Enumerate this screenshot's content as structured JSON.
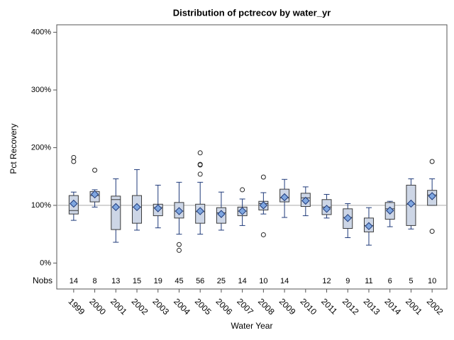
{
  "chart_data": {
    "type": "box",
    "title": "Distribution of pctrecov by water_yr",
    "x_label": "Water Year",
    "y_label": "Pct Recovery",
    "categories": [
      "1999",
      "2000",
      "2001",
      "2002",
      "2003",
      "2004",
      "2005",
      "2006",
      "2007",
      "2008",
      "2009",
      "2010",
      "2011",
      "2012",
      "2013",
      "2014",
      "2001",
      "2002"
    ],
    "boxes": [
      {
        "low": 74,
        "q1": 85,
        "median": 91,
        "q3": 117,
        "high": 123,
        "mean": 103,
        "outliers": [
          183,
          176
        ]
      },
      {
        "low": 97,
        "q1": 106,
        "median": 117,
        "q3": 124,
        "high": 127,
        "mean": 119,
        "outliers": [
          161
        ]
      },
      {
        "low": 36,
        "q1": 58,
        "median": 110,
        "q3": 116,
        "high": 146,
        "mean": 97,
        "outliers": []
      },
      {
        "low": 57,
        "q1": 69,
        "median": 97,
        "q3": 117,
        "high": 162,
        "mean": 97,
        "outliers": []
      },
      {
        "low": 61,
        "q1": 82,
        "median": 96,
        "q3": 102,
        "high": 135,
        "mean": 95,
        "outliers": []
      },
      {
        "low": 50,
        "q1": 78,
        "median": 90,
        "q3": 105,
        "high": 140,
        "mean": 90,
        "outliers": [
          32,
          22
        ]
      },
      {
        "low": 50,
        "q1": 69,
        "median": 89,
        "q3": 102,
        "high": 140,
        "mean": 90,
        "outliers": [
          191,
          171,
          170,
          154
        ]
      },
      {
        "low": 57,
        "q1": 69,
        "median": 87,
        "q3": 96,
        "high": 123,
        "mean": 85,
        "outliers": []
      },
      {
        "low": 65,
        "q1": 82,
        "median": 90,
        "q3": 97,
        "high": 111,
        "mean": 90,
        "outliers": [
          127
        ]
      },
      {
        "low": 85,
        "q1": 92,
        "median": 103,
        "q3": 107,
        "high": 122,
        "mean": 100,
        "outliers": [
          149,
          49
        ]
      },
      {
        "low": 79,
        "q1": 106,
        "median": 113,
        "q3": 128,
        "high": 145,
        "mean": 114,
        "outliers": []
      },
      {
        "low": 82,
        "q1": 98,
        "median": 113,
        "q3": 121,
        "high": 132,
        "mean": 108,
        "outliers": []
      },
      {
        "low": 78,
        "q1": 84,
        "median": 97,
        "q3": 110,
        "high": 119,
        "mean": 94,
        "outliers": []
      },
      {
        "low": 44,
        "q1": 60,
        "median": 79,
        "q3": 94,
        "high": 103,
        "mean": 78,
        "outliers": []
      },
      {
        "low": 31,
        "q1": 54,
        "median": 65,
        "q3": 78,
        "high": 96,
        "mean": 64,
        "outliers": []
      },
      {
        "low": 63,
        "q1": 76,
        "median": 94,
        "q3": 105,
        "high": 107,
        "mean": 91,
        "outliers": []
      },
      {
        "low": 59,
        "q1": 65,
        "median": 102,
        "q3": 135,
        "high": 146,
        "mean": 103,
        "outliers": []
      },
      {
        "low": 100,
        "q1": 100,
        "median": 118,
        "q3": 126,
        "high": 146,
        "mean": 116,
        "outliers": [
          176,
          55
        ]
      }
    ],
    "nobs_label": "Nobs",
    "nobs": [
      14,
      8,
      13,
      15,
      19,
      45,
      56,
      25,
      14,
      10,
      14,
      null,
      12,
      9,
      11,
      6,
      5,
      10
    ],
    "reference_line": 100,
    "ylim": [
      -45,
      413
    ],
    "yticks": [
      {
        "value": 0,
        "label": "0%"
      },
      {
        "value": 100,
        "label": "100%"
      },
      {
        "value": 200,
        "label": "200%"
      },
      {
        "value": 300,
        "label": "300%"
      },
      {
        "value": 400,
        "label": "400%"
      }
    ],
    "box_color": "#cdd6e6",
    "mean_color": "#7ea6e0",
    "line_color": "#1f3a7a"
  }
}
